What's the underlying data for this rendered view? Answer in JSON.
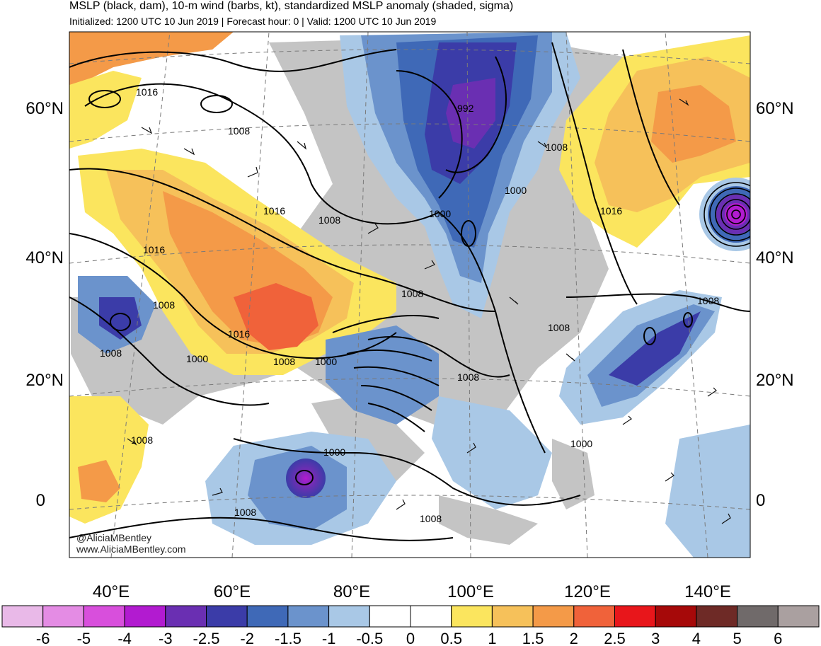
{
  "header": {
    "title": "MSLP (black, dam), 10-m wind (barbs, kt), standardized MSLP anomaly (shaded, sigma)",
    "subtitle": "Initialized: 1200 UTC 10 Jun 2019 | Forecast hour: 0 | Valid: 1200 UTC 10 Jun 2019"
  },
  "lat_labels": [
    "60°N",
    "40°N",
    "20°N",
    "0"
  ],
  "lon_labels": [
    "40°E",
    "60°E",
    "80°E",
    "100°E",
    "120°E",
    "140°E"
  ],
  "contour_labels": [
    "1016",
    "1008",
    "1016",
    "1016",
    "1008",
    "1008",
    "1008",
    "1016",
    "1000",
    "1008",
    "1000",
    "992",
    "1008",
    "1000",
    "1000",
    "1016",
    "1008",
    "1008",
    "1008",
    "1008",
    "1008",
    "1000",
    "1008",
    "1008"
  ],
  "credit": {
    "line1": "@AliciaMBentley",
    "line2": "www.AliciaMBentley.com"
  },
  "colorbar": {
    "labels": [
      "-6",
      "-5",
      "-4",
      "-3",
      "-2.5",
      "-2",
      "-1.5",
      "-1",
      "-0.5",
      "0",
      "0.5",
      "1",
      "1.5",
      "2",
      "2.5",
      "3",
      "4",
      "5",
      "6"
    ],
    "colors": [
      "#e9b9e8",
      "#e48ce4",
      "#d84fdc",
      "#b21bd0",
      "#6a2fb2",
      "#3b3ca8",
      "#3f69b7",
      "#6b93cc",
      "#a9c8e6",
      "#ffffff",
      "#ffffff",
      "#fbe55e",
      "#f6c15a",
      "#f49a48",
      "#f0623a",
      "#e8161b",
      "#a60909",
      "#6e2a26",
      "#706a6a",
      "#aaa0a0"
    ]
  },
  "colors": {
    "land_gray": "#c4c4c4",
    "ocean": "#ffffff"
  }
}
